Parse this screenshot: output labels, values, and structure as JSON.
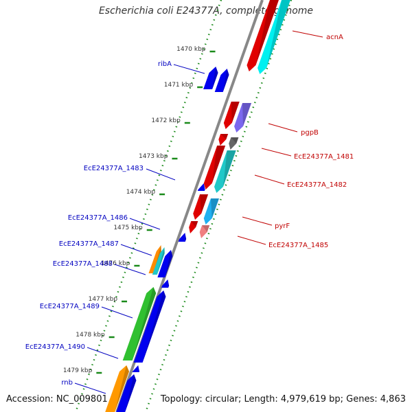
{
  "title": "Escherichia coli E24377A, complete genome",
  "accession": "Accession: NC_009801",
  "summary": "Topology: circular; Length: 4,979,619 bp; Genes: 4,863",
  "colors": {
    "backbone": "#888888",
    "tick": "#1a8a1a",
    "forward_label": "#c00000",
    "reverse_label": "#0000c0"
  },
  "ticks": [
    "1470 kbp",
    "1471 kbp",
    "1472 kbp",
    "1473 kbp",
    "1474 kbp",
    "1475 kbp",
    "1476 kbp",
    "1477 kbp",
    "1478 kbp",
    "1479 kbp"
  ],
  "forward_genes": [
    {
      "name": "acnA",
      "color": "#e00000"
    },
    {
      "name": "pgpB",
      "color": "#7b68ee"
    },
    {
      "name": "EcE24377A_1481",
      "color": "#666666"
    },
    {
      "name": "EcE24377A_1482",
      "color": "#20c8c8"
    },
    {
      "name": "pyrF",
      "color": "#20b0f0"
    },
    {
      "name": "EcE24377A_1485",
      "color": "#f08080"
    }
  ],
  "reverse_genes": [
    {
      "name": "ribA",
      "color": "#0000ee"
    },
    {
      "name": "EcE24377A_1483",
      "color": "#0000ee"
    },
    {
      "name": "EcE24377A_1486",
      "color": "#0000ee"
    },
    {
      "name": "EcE24377A_1487",
      "color": "#ff8c00"
    },
    {
      "name": "EcE24377A_1488",
      "color": "#20c8c8"
    },
    {
      "name": "EcE24377A_1489",
      "color": "#30c030"
    },
    {
      "name": "EcE24377A_1490",
      "color": "#0000ee"
    },
    {
      "name": "rnb",
      "color": "#ff9900"
    }
  ]
}
